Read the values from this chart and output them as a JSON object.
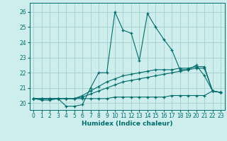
{
  "title": "",
  "xlabel": "Humidex (Indice chaleur)",
  "bg_color": "#ceeeed",
  "grid_color": "#a8d4d2",
  "line_color": "#006b6b",
  "x_ticks": [
    0,
    1,
    2,
    3,
    4,
    5,
    6,
    7,
    8,
    9,
    10,
    11,
    12,
    13,
    14,
    15,
    16,
    17,
    18,
    19,
    20,
    21,
    22,
    23
  ],
  "y_ticks": [
    20,
    21,
    22,
    23,
    24,
    25,
    26
  ],
  "xlim": [
    -0.5,
    23.5
  ],
  "ylim": [
    19.55,
    26.6
  ],
  "series": [
    [
      20.3,
      20.2,
      20.2,
      20.3,
      19.8,
      19.8,
      19.9,
      21.0,
      22.0,
      22.0,
      26.0,
      24.8,
      24.6,
      22.8,
      25.9,
      25.0,
      24.2,
      23.5,
      22.2,
      22.2,
      22.5,
      21.8,
      20.8,
      20.7
    ],
    [
      20.3,
      20.3,
      20.3,
      20.3,
      20.3,
      20.3,
      20.3,
      20.3,
      20.3,
      20.3,
      20.4,
      20.4,
      20.4,
      20.4,
      20.4,
      20.4,
      20.4,
      20.5,
      20.5,
      20.5,
      20.5,
      20.5,
      20.8,
      20.7
    ],
    [
      20.3,
      20.3,
      20.3,
      20.3,
      20.3,
      20.3,
      20.4,
      20.6,
      20.8,
      21.0,
      21.2,
      21.4,
      21.5,
      21.6,
      21.7,
      21.8,
      21.9,
      22.0,
      22.1,
      22.2,
      22.3,
      22.3,
      20.8,
      20.7
    ],
    [
      20.3,
      20.3,
      20.3,
      20.3,
      20.3,
      20.3,
      20.5,
      20.8,
      21.1,
      21.4,
      21.6,
      21.8,
      21.9,
      22.0,
      22.1,
      22.2,
      22.2,
      22.2,
      22.3,
      22.3,
      22.4,
      22.4,
      20.8,
      20.7
    ]
  ]
}
